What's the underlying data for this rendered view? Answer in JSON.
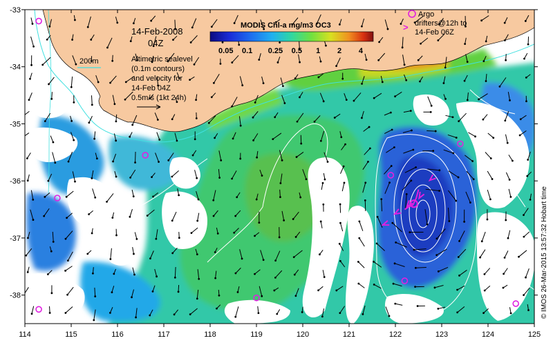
{
  "map": {
    "date": "14-Feb-2008",
    "time": "04Z",
    "isobath_label": "200m",
    "altimetry_lines": [
      "Altimetric sealevel",
      "(0.1m contours)",
      "and velocity for",
      "14-Feb 04Z",
      "0.5m/s (1kt 24h)"
    ],
    "argo_lines": [
      "Argo",
      "drifters@12h to",
      "14-Feb 06Z"
    ],
    "argo_symbol": "o",
    "drifter_symbol": ">",
    "credit": "© IMOS 26-Mar-2015 13:57:32 Hobart time",
    "lon_ticks": [
      "114",
      "115",
      "116",
      "117",
      "118",
      "119",
      "120",
      "121",
      "122",
      "123",
      "124",
      "125"
    ],
    "lat_ticks": [
      "-33",
      "-34",
      "-35",
      "-36",
      "-37",
      "-38"
    ],
    "lon_range": [
      114,
      125
    ],
    "lat_range": [
      -38.5,
      -33
    ],
    "colors": {
      "land": "#f7c9a0",
      "argo": "#e020e0",
      "coast_iso": "#40e0e0",
      "contour": "#ffffff",
      "vector": "#000000",
      "frame": "#000000"
    }
  },
  "legend": {
    "title": "MODIS Chl-a mg/m3 OC3",
    "labels": [
      "0.05",
      "0.1",
      "0.25",
      "0.5",
      "1",
      "2",
      "4"
    ],
    "values": [
      0.05,
      0.1,
      0.25,
      0.5,
      1,
      2,
      4
    ],
    "range": [
      0.03,
      6
    ],
    "colors": [
      "#0a0a80",
      "#1a2cd8",
      "#1e6ef0",
      "#20b0f0",
      "#30d8a0",
      "#70e040",
      "#d8e020",
      "#f09020",
      "#d83010",
      "#801010"
    ]
  },
  "argo_floats": [
    {
      "lon": 114.3,
      "lat": -33.2
    },
    {
      "lon": 114.7,
      "lat": -36.3
    },
    {
      "lon": 116.6,
      "lat": -35.55
    },
    {
      "lon": 114.3,
      "lat": -38.25
    },
    {
      "lon": 119.0,
      "lat": -38.05
    },
    {
      "lon": 121.9,
      "lat": -35.9
    },
    {
      "lon": 123.4,
      "lat": -35.35
    },
    {
      "lon": 122.2,
      "lat": -37.75
    },
    {
      "lon": 124.6,
      "lat": -38.15
    }
  ],
  "drifters": [
    {
      "lon": 122.8,
      "lat": -35.95,
      "dir": 220
    },
    {
      "lon": 122.55,
      "lat": -36.25,
      "dir": 240
    },
    {
      "lon": 122.3,
      "lat": -36.4,
      "dir": 230
    },
    {
      "lon": 122.05,
      "lat": -36.55,
      "dir": 210
    },
    {
      "lon": 121.8,
      "lat": -36.75,
      "dir": 200
    }
  ],
  "drifter_track_points": [
    {
      "lon": 122.5,
      "lat": -36.15
    },
    {
      "lon": 122.45,
      "lat": -36.3
    },
    {
      "lon": 122.38,
      "lat": -36.42
    },
    {
      "lon": 122.3,
      "lat": -36.45
    },
    {
      "lon": 122.2,
      "lat": -36.5
    }
  ]
}
